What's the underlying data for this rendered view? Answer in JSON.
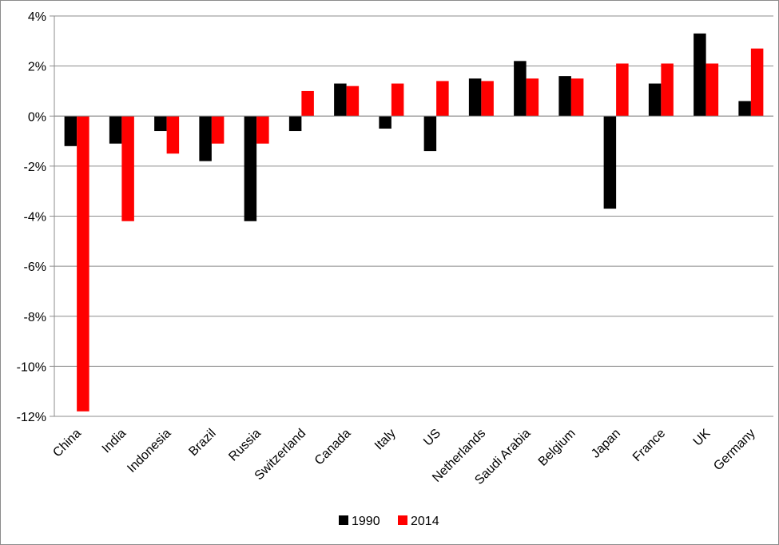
{
  "chart_data": {
    "type": "bar",
    "title": "",
    "xlabel": "",
    "ylabel": "",
    "categories": [
      "China",
      "India",
      "Indonesia",
      "Brazil",
      "Russia",
      "Switzerland",
      "Canada",
      "Italy",
      "US",
      "Netherlands",
      "Saudi Arabia",
      "Belgium",
      "Japan",
      "France",
      "UK",
      "Germany"
    ],
    "series": [
      {
        "name": "1990",
        "color": "#000000",
        "values": [
          -1.2,
          -1.1,
          -0.6,
          -1.8,
          -4.2,
          -0.6,
          1.3,
          -0.5,
          -1.4,
          1.5,
          2.2,
          1.6,
          -3.7,
          1.3,
          3.3,
          0.6
        ]
      },
      {
        "name": "2014",
        "color": "#ff0000",
        "values": [
          -11.8,
          -4.2,
          -1.5,
          -1.1,
          -1.1,
          1.0,
          1.2,
          1.3,
          1.4,
          1.4,
          1.5,
          1.5,
          2.1,
          2.1,
          2.1,
          2.7
        ]
      }
    ],
    "ylim": [
      -12,
      4
    ],
    "yticks": [
      4,
      2,
      0,
      -2,
      -4,
      -6,
      -8,
      -10,
      -12
    ],
    "ytick_labels": [
      "4%",
      "2%",
      "0%",
      "-2%",
      "-4%",
      "-6%",
      "-8%",
      "-10%",
      "-12%"
    ],
    "grid": true,
    "legend_position": "bottom-center"
  }
}
